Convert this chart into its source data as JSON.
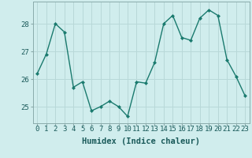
{
  "x": [
    0,
    1,
    2,
    3,
    4,
    5,
    6,
    7,
    8,
    9,
    10,
    11,
    12,
    13,
    14,
    15,
    16,
    17,
    18,
    19,
    20,
    21,
    22,
    23
  ],
  "y": [
    26.2,
    26.9,
    28.0,
    27.7,
    25.7,
    25.9,
    24.85,
    25.0,
    25.2,
    25.0,
    24.65,
    25.9,
    25.85,
    26.6,
    28.0,
    28.3,
    27.5,
    27.4,
    28.2,
    28.5,
    28.3,
    26.7,
    26.1,
    25.4
  ],
  "line_color": "#1a7a6e",
  "marker": "D",
  "marker_size": 2.0,
  "linewidth": 1.0,
  "xlabel": "Humidex (Indice chaleur)",
  "xlim": [
    -0.5,
    23.5
  ],
  "ylim": [
    24.4,
    28.8
  ],
  "yticks": [
    25,
    26,
    27,
    28
  ],
  "grid_color": "#b8d8d8",
  "bg_color": "#d0eded",
  "tick_label_size": 6.5,
  "xlabel_size": 7.5
}
